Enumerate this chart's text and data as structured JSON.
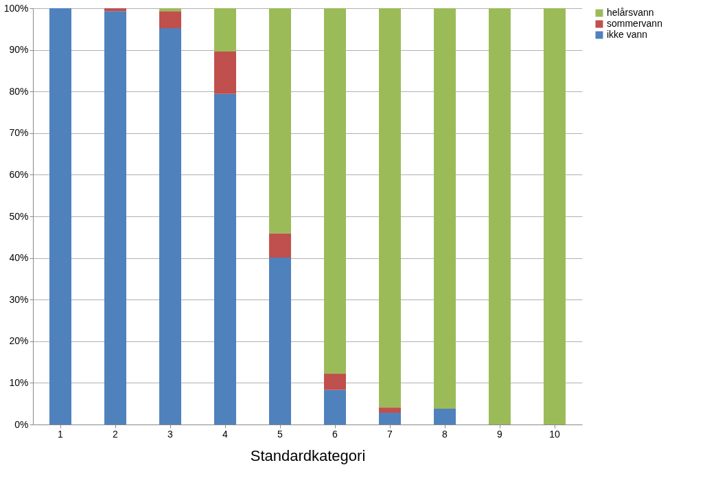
{
  "chart_data": {
    "type": "bar",
    "stacked": true,
    "xlabel": "Standardkategori",
    "categories": [
      "1",
      "2",
      "3",
      "4",
      "5",
      "6",
      "7",
      "8",
      "9",
      "10"
    ],
    "series": [
      {
        "name": "ikke vann",
        "color": "#4f81bd",
        "values": [
          100,
          99.3,
          95.2,
          79.4,
          40.1,
          8.3,
          2.8,
          3.8,
          0,
          0
        ]
      },
      {
        "name": "sommervann",
        "color": "#c0504d",
        "values": [
          0,
          0.7,
          4.1,
          10.2,
          5.8,
          3.9,
          1.3,
          0,
          0,
          0
        ]
      },
      {
        "name": "helårsvann",
        "color": "#9bbb59",
        "values": [
          0,
          0,
          0.7,
          10.4,
          54.1,
          87.8,
          95.9,
          96.2,
          100,
          100
        ]
      }
    ],
    "ylim": [
      0,
      100
    ],
    "yticks": [
      {
        "value": 0,
        "label": "0%"
      },
      {
        "value": 10,
        "label": "10%"
      },
      {
        "value": 20,
        "label": "20%"
      },
      {
        "value": 30,
        "label": "30%"
      },
      {
        "value": 40,
        "label": "40%"
      },
      {
        "value": 50,
        "label": "50%"
      },
      {
        "value": 60,
        "label": "60%"
      },
      {
        "value": 70,
        "label": "70%"
      },
      {
        "value": 80,
        "label": "80%"
      },
      {
        "value": 90,
        "label": "90%"
      },
      {
        "value": 100,
        "label": "100%"
      }
    ],
    "grid": "y",
    "legend": "right"
  }
}
